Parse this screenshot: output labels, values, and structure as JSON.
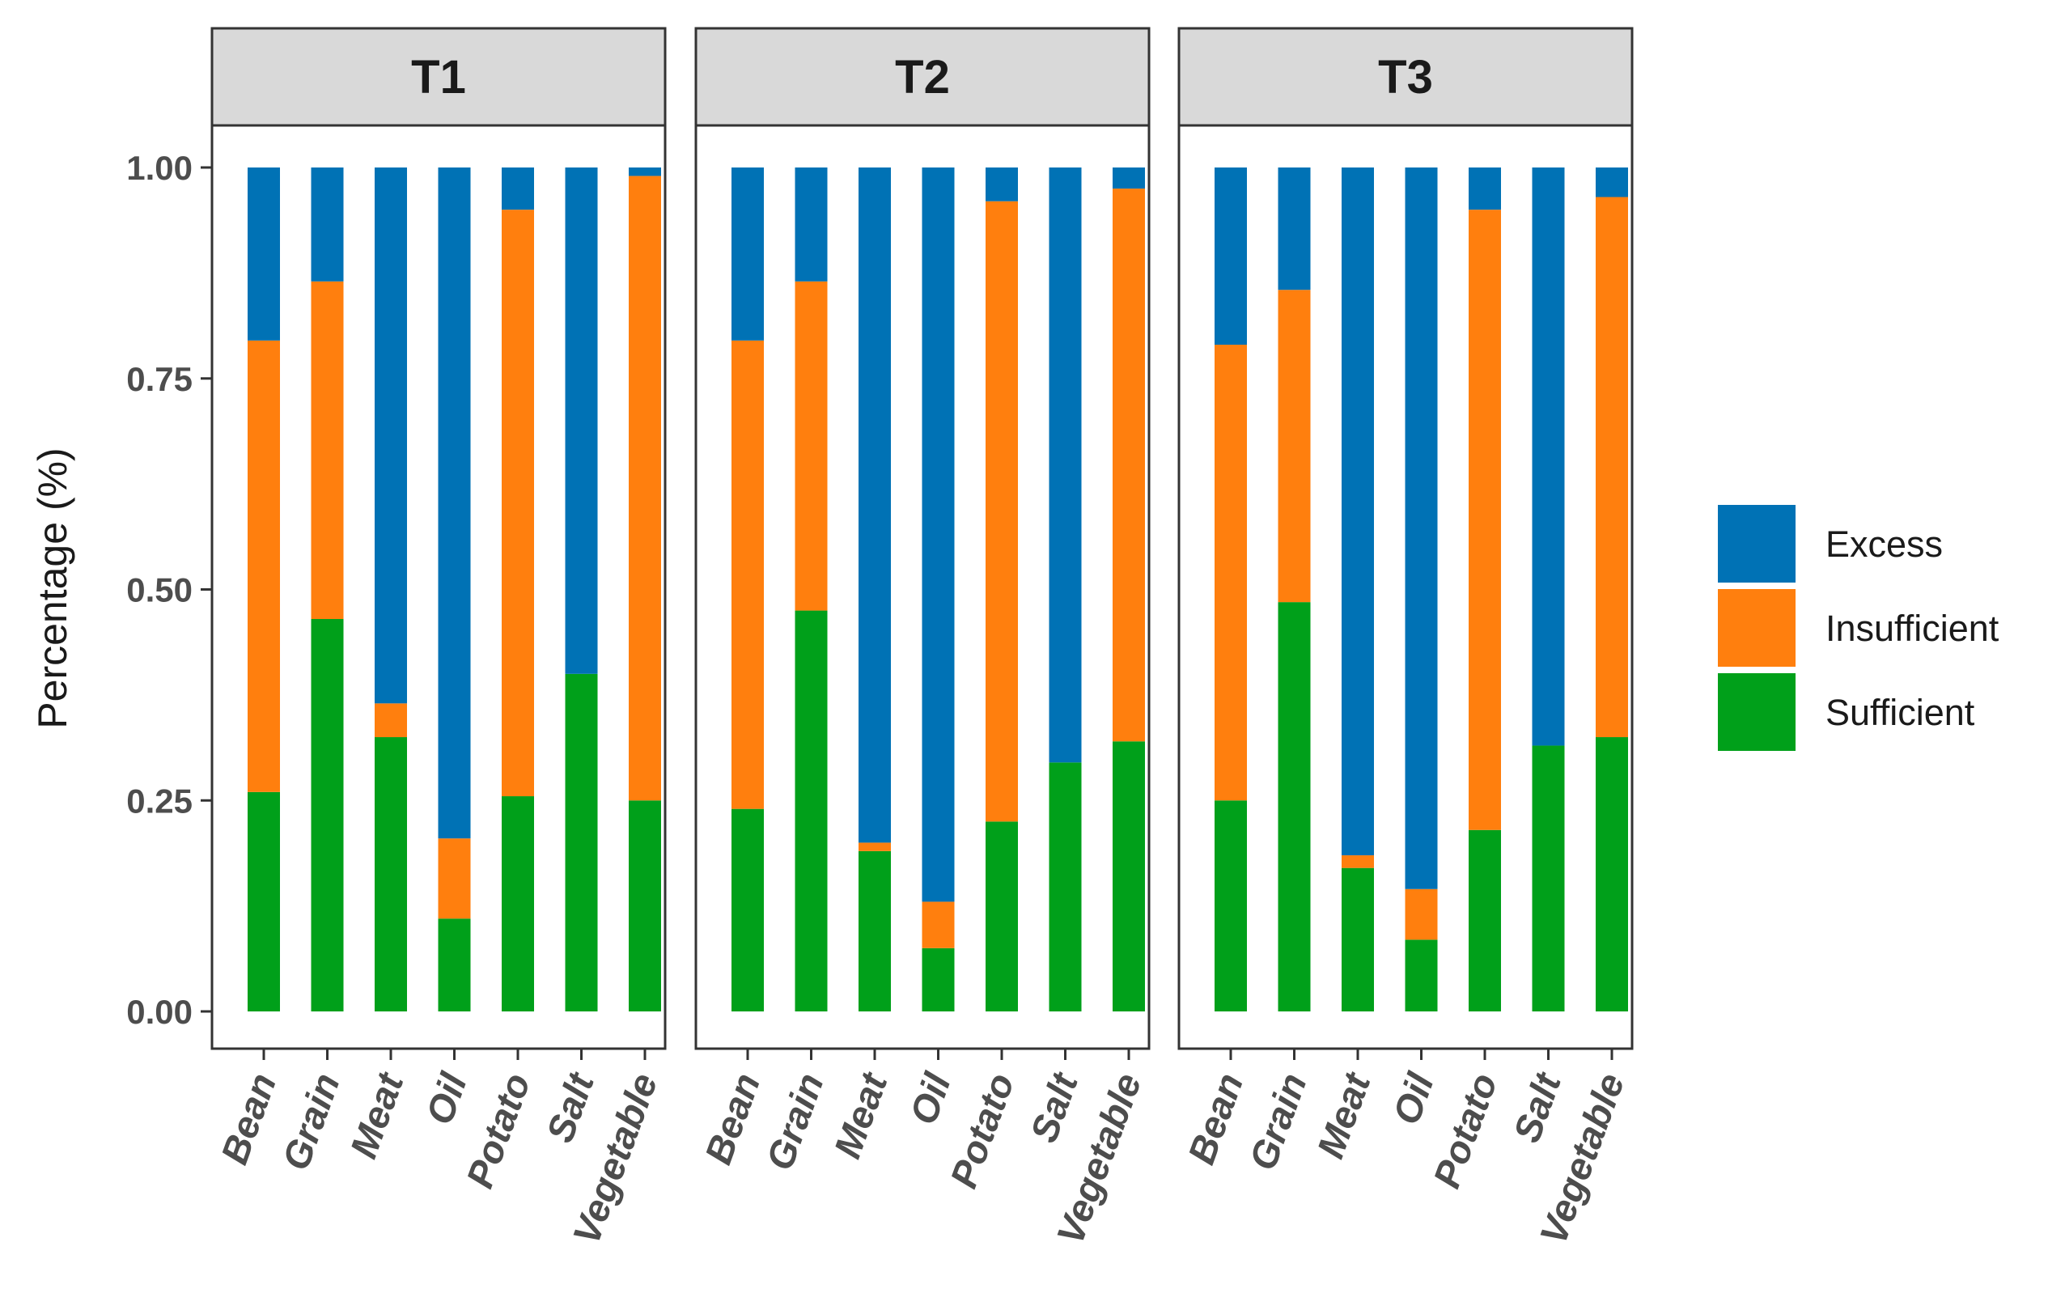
{
  "chart_data": {
    "type": "bar",
    "stacked": true,
    "ylabel": "Percentage (%)",
    "xlabel": "",
    "ylim": [
      0,
      1.05
    ],
    "yticks": [
      0,
      0.25,
      0.5,
      0.75,
      1.0
    ],
    "ytick_labels": [
      "0.00",
      "0.25",
      "0.50",
      "0.75",
      "1.00"
    ],
    "categories": [
      "Bean",
      "Grain",
      "Meat",
      "Oil",
      "Potato",
      "Salt",
      "Vegetable"
    ],
    "legend": {
      "position": "right",
      "entries": [
        {
          "name": "Excess",
          "color": "#0072B5"
        },
        {
          "name": "Insufficient",
          "color": "#FF7F0E"
        },
        {
          "name": "Sufficient",
          "color": "#00A01A"
        }
      ]
    },
    "stack_order_bottom_to_top": [
      "Sufficient",
      "Insufficient",
      "Excess"
    ],
    "panels": [
      {
        "label": "T1",
        "series": [
          {
            "name": "Sufficient",
            "values": [
              0.26,
              0.465,
              0.325,
              0.11,
              0.255,
              0.4,
              0.25
            ]
          },
          {
            "name": "Insufficient",
            "values": [
              0.535,
              0.4,
              0.04,
              0.095,
              0.695,
              0.0,
              0.74
            ]
          },
          {
            "name": "Excess",
            "values": [
              0.205,
              0.135,
              0.635,
              0.795,
              0.05,
              0.6,
              0.01
            ]
          }
        ]
      },
      {
        "label": "T2",
        "series": [
          {
            "name": "Sufficient",
            "values": [
              0.24,
              0.475,
              0.19,
              0.075,
              0.225,
              0.295,
              0.32
            ]
          },
          {
            "name": "Insufficient",
            "values": [
              0.555,
              0.39,
              0.01,
              0.055,
              0.735,
              0.0,
              0.655
            ]
          },
          {
            "name": "Excess",
            "values": [
              0.205,
              0.135,
              0.8,
              0.87,
              0.04,
              0.705,
              0.025
            ]
          }
        ]
      },
      {
        "label": "T3",
        "series": [
          {
            "name": "Sufficient",
            "values": [
              0.25,
              0.485,
              0.17,
              0.085,
              0.215,
              0.315,
              0.325
            ]
          },
          {
            "name": "Insufficient",
            "values": [
              0.54,
              0.37,
              0.015,
              0.06,
              0.735,
              0.0,
              0.64
            ]
          },
          {
            "name": "Excess",
            "values": [
              0.21,
              0.145,
              0.815,
              0.855,
              0.05,
              0.685,
              0.035
            ]
          }
        ]
      }
    ]
  }
}
